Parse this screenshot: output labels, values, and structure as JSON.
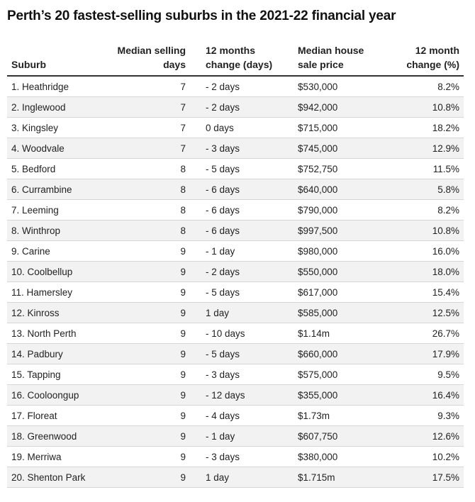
{
  "title": "Perth’s 20 fastest-selling suburbs in the 2021-22 financial year",
  "chart_data": {
    "type": "table",
    "title": "Perth’s 20 fastest-selling suburbs in the 2021-22 financial year",
    "columns": [
      {
        "line1": "",
        "line2": "Suburb"
      },
      {
        "line1": "Median selling",
        "line2": "days"
      },
      {
        "line1": "12 months",
        "line2": "change (days)"
      },
      {
        "line1": "Median house",
        "line2": "sale price"
      },
      {
        "line1": "12 month",
        "line2": "change (%)"
      }
    ],
    "rows": [
      {
        "suburb": "1. Heathridge",
        "days": "7",
        "change_days": "- 2 days",
        "price": "$530,000",
        "change_pct": "8.2%"
      },
      {
        "suburb": "2. Inglewood",
        "days": "7",
        "change_days": "- 2 days",
        "price": "$942,000",
        "change_pct": "10.8%"
      },
      {
        "suburb": "3. Kingsley",
        "days": "7",
        "change_days": "0 days",
        "price": "$715,000",
        "change_pct": "18.2%"
      },
      {
        "suburb": "4. Woodvale",
        "days": "7",
        "change_days": "- 3 days",
        "price": "$745,000",
        "change_pct": "12.9%"
      },
      {
        "suburb": "5. Bedford",
        "days": "8",
        "change_days": "- 5 days",
        "price": "$752,750",
        "change_pct": "11.5%"
      },
      {
        "suburb": "6. Currambine",
        "days": "8",
        "change_days": "- 6 days",
        "price": "$640,000",
        "change_pct": "5.8%"
      },
      {
        "suburb": "7. Leeming",
        "days": "8",
        "change_days": "- 6 days",
        "price": "$790,000",
        "change_pct": "8.2%"
      },
      {
        "suburb": "8. Winthrop",
        "days": "8",
        "change_days": "- 6 days",
        "price": "$997,500",
        "change_pct": "10.8%"
      },
      {
        "suburb": "9. Carine",
        "days": "9",
        "change_days": "- 1 day",
        "price": "$980,000",
        "change_pct": "16.0%"
      },
      {
        "suburb": "10. Coolbellup",
        "days": "9",
        "change_days": "- 2 days",
        "price": "$550,000",
        "change_pct": "18.0%"
      },
      {
        "suburb": "11. Hamersley",
        "days": "9",
        "change_days": "- 5 days",
        "price": "$617,000",
        "change_pct": "15.4%"
      },
      {
        "suburb": "12. Kinross",
        "days": "9",
        "change_days": "1 day",
        "price": "$585,000",
        "change_pct": "12.5%"
      },
      {
        "suburb": "13. North Perth",
        "days": "9",
        "change_days": "- 10 days",
        "price": "$1.14m",
        "change_pct": "26.7%"
      },
      {
        "suburb": "14. Padbury",
        "days": "9",
        "change_days": "- 5 days",
        "price": "$660,000",
        "change_pct": "17.9%"
      },
      {
        "suburb": "15. Tapping",
        "days": "9",
        "change_days": "- 3 days",
        "price": "$575,000",
        "change_pct": "9.5%"
      },
      {
        "suburb": "16. Cooloongup",
        "days": "9",
        "change_days": "- 12 days",
        "price": "$355,000",
        "change_pct": "16.4%"
      },
      {
        "suburb": "17. Floreat",
        "days": "9",
        "change_days": "- 4 days",
        "price": "$1.73m",
        "change_pct": "9.3%"
      },
      {
        "suburb": "18. Greenwood",
        "days": "9",
        "change_days": "- 1 day",
        "price": "$607,750",
        "change_pct": "12.6%"
      },
      {
        "suburb": "19. Merriwa",
        "days": "9",
        "change_days": "- 3 days",
        "price": "$380,000",
        "change_pct": "10.2%"
      },
      {
        "suburb": "20. Shenton Park",
        "days": "9",
        "change_days": "1 day",
        "price": "$1.715m",
        "change_pct": "17.5%"
      }
    ]
  },
  "colors": {
    "header_rule": "#333333",
    "row_rule": "#d6d6d6",
    "alt_row": "#f2f2f2",
    "text": "#222222"
  }
}
